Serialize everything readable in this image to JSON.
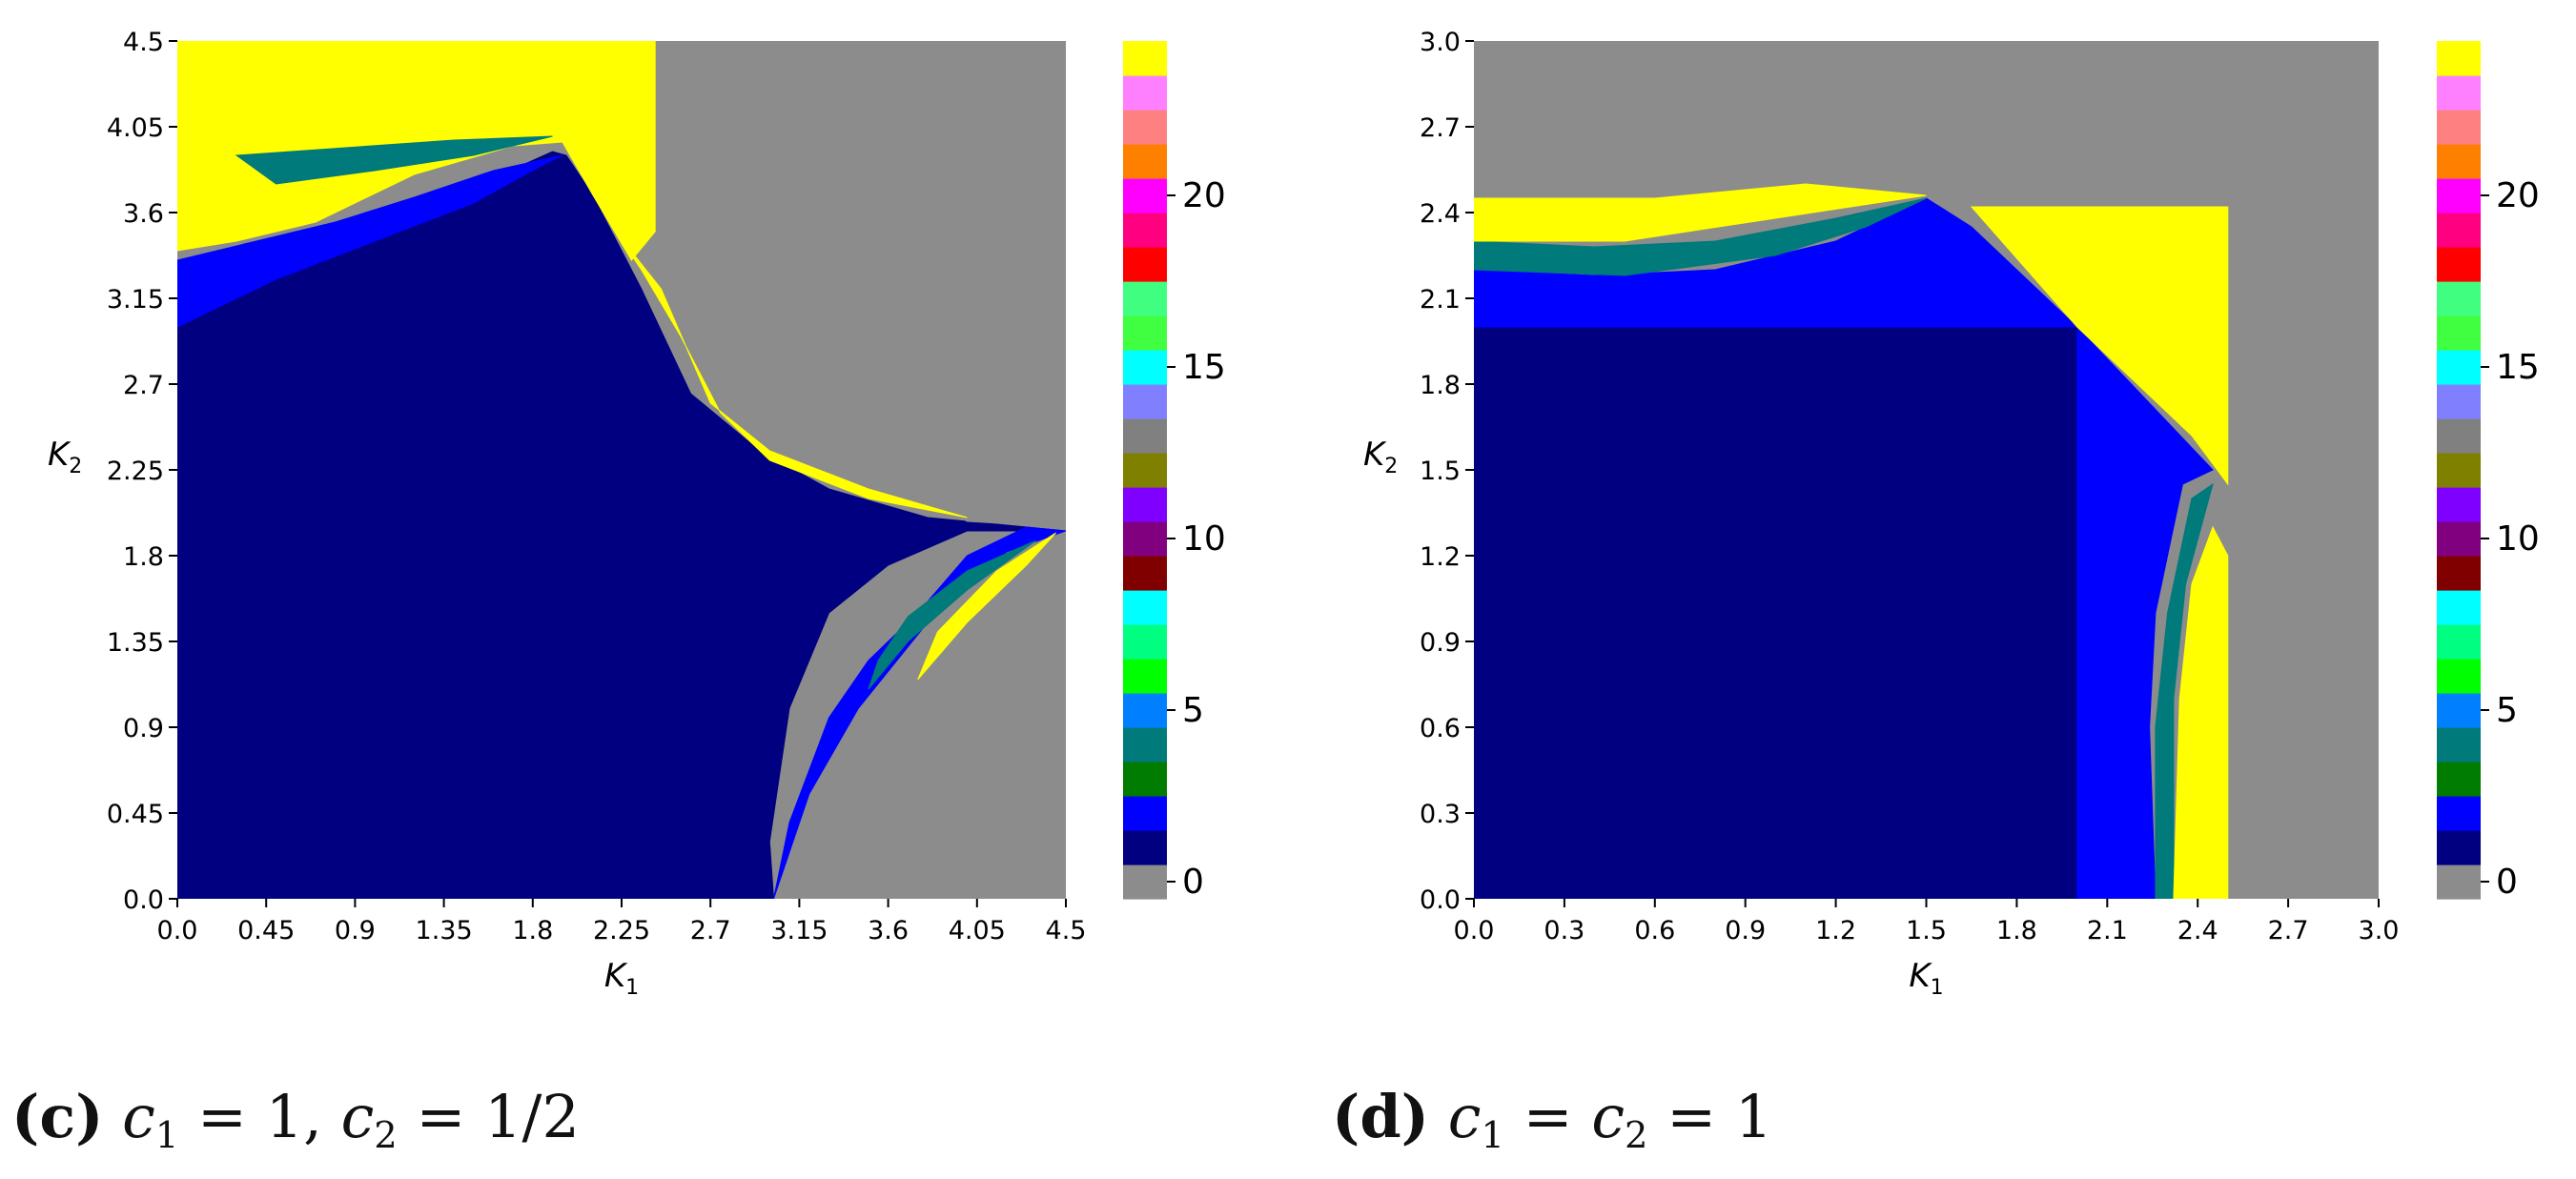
{
  "chart_data": [
    {
      "type": "heatmap",
      "panel": "(c)",
      "xlabel": "K1",
      "ylabel": "K2",
      "x_ticks": [
        0.0,
        0.45,
        0.9,
        1.35,
        1.8,
        2.25,
        2.7,
        3.15,
        3.6,
        4.05,
        4.5
      ],
      "y_ticks": [
        0.0,
        0.45,
        0.9,
        1.35,
        1.8,
        2.25,
        2.7,
        3.15,
        3.6,
        4.05,
        4.5
      ],
      "x_tick_labels": [
        "0.0",
        "0.45",
        "0.9",
        "1.35",
        "1.8",
        "2.25",
        "2.7",
        "3.15",
        "3.6",
        "4.05",
        "4.5"
      ],
      "y_tick_labels": [
        "0.0",
        "0.45",
        "0.9",
        "1.35",
        "1.8",
        "2.25",
        "2.7",
        "3.15",
        "3.6",
        "4.05",
        "4.5"
      ],
      "xlim": [
        0,
        4.5
      ],
      "ylim": [
        0,
        4.5
      ],
      "colorbar_ticks": [
        0,
        5,
        10,
        15,
        20
      ],
      "colorbar_range": [
        0,
        24
      ],
      "regions": [
        {
          "value": 1,
          "polygon": [
            [
              0,
              0
            ],
            [
              3.02,
              0
            ],
            [
              3.0,
              0.3
            ],
            [
              3.1,
              1.0
            ],
            [
              3.3,
              1.5
            ],
            [
              3.6,
              1.75
            ],
            [
              4.0,
              1.93
            ],
            [
              4.5,
              1.93
            ],
            [
              3.8,
              2.0
            ],
            [
              3.3,
              2.15
            ],
            [
              2.95,
              2.35
            ],
            [
              2.6,
              2.65
            ],
            [
              2.35,
              3.2
            ],
            [
              2.1,
              3.7
            ],
            [
              1.97,
              3.9
            ],
            [
              1.9,
              3.92
            ],
            [
              1.6,
              3.78
            ],
            [
              1.2,
              3.6
            ],
            [
              0.8,
              3.42
            ],
            [
              0.5,
              3.3
            ],
            [
              0.2,
              3.15
            ],
            [
              0,
              3.0
            ]
          ]
        },
        {
          "value": 0,
          "polygon": [
            [
              2.42,
              4.5
            ],
            [
              4.5,
              4.5
            ],
            [
              4.5,
              1.95
            ],
            [
              4.0,
              1.98
            ],
            [
              3.6,
              2.2
            ],
            [
              3.0,
              2.5
            ],
            [
              2.6,
              3.3
            ],
            [
              2.42,
              3.5
            ]
          ]
        },
        {
          "value": 0,
          "polygon": [
            [
              3.05,
              0
            ],
            [
              4.5,
              0
            ],
            [
              4.5,
              1.9
            ],
            [
              4.2,
              1.62
            ],
            [
              3.9,
              1.25
            ],
            [
              3.6,
              0.95
            ],
            [
              3.3,
              0.75
            ],
            [
              3.1,
              0.35
            ]
          ]
        },
        {
          "value": 24,
          "polygon": [
            [
              0,
              4.5
            ],
            [
              2.42,
              4.5
            ],
            [
              2.42,
              3.5
            ],
            [
              2.3,
              3.35
            ],
            [
              2.1,
              3.7
            ],
            [
              1.95,
              3.97
            ],
            [
              1.7,
              3.95
            ],
            [
              1.2,
              3.8
            ],
            [
              0.7,
              3.55
            ],
            [
              0.3,
              3.45
            ],
            [
              0,
              3.4
            ]
          ]
        },
        {
          "value": 2,
          "polygon": [
            [
              0,
              3.0
            ],
            [
              0.5,
              3.25
            ],
            [
              1.0,
              3.45
            ],
            [
              1.5,
              3.65
            ],
            [
              1.85,
              3.85
            ],
            [
              1.95,
              3.9
            ],
            [
              1.6,
              3.82
            ],
            [
              1.2,
              3.68
            ],
            [
              0.8,
              3.55
            ],
            [
              0.4,
              3.45
            ],
            [
              0,
              3.35
            ]
          ]
        },
        {
          "value": 2,
          "polygon": [
            [
              3.02,
              0
            ],
            [
              3.2,
              0.55
            ],
            [
              3.45,
              1.0
            ],
            [
              3.8,
              1.45
            ],
            [
              4.2,
              1.82
            ],
            [
              4.5,
              1.93
            ],
            [
              4.3,
              1.95
            ],
            [
              4.0,
              1.8
            ],
            [
              3.75,
              1.5
            ],
            [
              3.5,
              1.25
            ],
            [
              3.3,
              0.95
            ],
            [
              3.1,
              0.4
            ]
          ]
        },
        {
          "value": 4,
          "polygon": [
            [
              3.5,
              1.1
            ],
            [
              3.7,
              1.35
            ],
            [
              4.0,
              1.62
            ],
            [
              4.35,
              1.88
            ],
            [
              4.0,
              1.72
            ],
            [
              3.7,
              1.48
            ],
            [
              3.55,
              1.25
            ]
          ]
        },
        {
          "value": 24,
          "polygon": [
            [
              3.75,
              1.15
            ],
            [
              4.0,
              1.45
            ],
            [
              4.3,
              1.75
            ],
            [
              4.45,
              1.92
            ],
            [
              4.15,
              1.72
            ],
            [
              3.85,
              1.4
            ]
          ]
        },
        {
          "value": 24,
          "polygon": [
            [
              2.22,
              3.5
            ],
            [
              2.45,
              3.2
            ],
            [
              2.7,
              2.6
            ],
            [
              3.0,
              2.35
            ],
            [
              3.5,
              2.15
            ],
            [
              4.0,
              2.0
            ],
            [
              3.5,
              2.1
            ],
            [
              3.0,
              2.3
            ],
            [
              2.75,
              2.55
            ],
            [
              2.55,
              2.95
            ],
            [
              2.35,
              3.3
            ]
          ]
        },
        {
          "value": 4,
          "polygon": [
            [
              0.3,
              3.9
            ],
            [
              1.4,
              3.98
            ],
            [
              1.9,
              4.0
            ],
            [
              1.5,
              3.9
            ],
            [
              1.0,
              3.82
            ],
            [
              0.5,
              3.75
            ]
          ]
        }
      ]
    },
    {
      "type": "heatmap",
      "panel": "(d)",
      "xlabel": "K1",
      "ylabel": "K2",
      "x_ticks": [
        0.0,
        0.3,
        0.6,
        0.9,
        1.2,
        1.5,
        1.8,
        2.1,
        2.4,
        2.7,
        3.0
      ],
      "y_ticks": [
        0.0,
        0.3,
        0.6,
        0.9,
        1.2,
        1.5,
        1.8,
        2.1,
        2.4,
        2.7,
        3.0
      ],
      "x_tick_labels": [
        "0.0",
        "0.3",
        "0.6",
        "0.9",
        "1.2",
        "1.5",
        "1.8",
        "2.1",
        "2.4",
        "2.7",
        "3.0"
      ],
      "y_tick_labels": [
        "0.0",
        "0.3",
        "0.6",
        "0.9",
        "1.2",
        "1.5",
        "1.8",
        "2.1",
        "2.4",
        "2.7",
        "3.0"
      ],
      "xlim": [
        0,
        3.0
      ],
      "ylim": [
        0,
        3.0
      ],
      "colorbar_ticks": [
        0,
        5,
        10,
        15,
        20
      ],
      "colorbar_range": [
        0,
        24
      ],
      "regions": [
        {
          "value": 1,
          "polygon": [
            [
              0,
              0
            ],
            [
              2.0,
              0
            ],
            [
              2.0,
              2.0
            ],
            [
              0,
              2.0
            ]
          ]
        },
        {
          "value": 2,
          "polygon": [
            [
              0,
              2.0
            ],
            [
              2.0,
              2.0
            ],
            [
              2.0,
              0
            ],
            [
              2.26,
              0
            ],
            [
              2.24,
              0.6
            ],
            [
              2.26,
              1.0
            ],
            [
              2.35,
              1.45
            ],
            [
              2.45,
              1.5
            ],
            [
              2.0,
              2.0
            ],
            [
              1.65,
              2.35
            ],
            [
              1.5,
              2.45
            ],
            [
              1.2,
              2.3
            ],
            [
              0.8,
              2.2
            ],
            [
              0.4,
              2.18
            ],
            [
              0,
              2.2
            ]
          ]
        },
        {
          "value": 4,
          "polygon": [
            [
              0,
              2.2
            ],
            [
              0.5,
              2.18
            ],
            [
              1.0,
              2.25
            ],
            [
              1.3,
              2.35
            ],
            [
              1.5,
              2.45
            ],
            [
              1.2,
              2.38
            ],
            [
              0.8,
              2.3
            ],
            [
              0.4,
              2.28
            ],
            [
              0,
              2.3
            ]
          ]
        },
        {
          "value": 24,
          "polygon": [
            [
              0,
              2.3
            ],
            [
              0.5,
              2.3
            ],
            [
              1.0,
              2.38
            ],
            [
              1.5,
              2.46
            ],
            [
              1.1,
              2.5
            ],
            [
              0.6,
              2.45
            ],
            [
              0,
              2.45
            ]
          ]
        },
        {
          "value": 24,
          "polygon": [
            [
              1.65,
              2.42
            ],
            [
              2.5,
              2.42
            ],
            [
              2.5,
              1.45
            ],
            [
              2.38,
              1.62
            ],
            [
              2.0,
              2.0
            ]
          ]
        },
        {
          "value": 4,
          "polygon": [
            [
              2.26,
              0
            ],
            [
              2.32,
              0
            ],
            [
              2.32,
              0.7
            ],
            [
              2.36,
              1.1
            ],
            [
              2.45,
              1.45
            ],
            [
              2.38,
              1.4
            ],
            [
              2.3,
              1.0
            ],
            [
              2.26,
              0.6
            ]
          ]
        },
        {
          "value": 24,
          "polygon": [
            [
              2.32,
              0
            ],
            [
              2.5,
              0
            ],
            [
              2.5,
              1.2
            ],
            [
              2.45,
              1.3
            ],
            [
              2.38,
              1.1
            ],
            [
              2.34,
              0.7
            ]
          ]
        }
      ]
    }
  ],
  "colorbar": {
    "colors": [
      "#8c8c8c",
      "#000080",
      "#0000ff",
      "#007c00",
      "#007a7a",
      "#0080ff",
      "#00ff00",
      "#00ff80",
      "#00ffff",
      "#800000",
      "#800080",
      "#8000ff",
      "#808000",
      "#808080",
      "#8080ff",
      "#00ffff",
      "#40ff40",
      "#40ff80",
      "#ff0000",
      "#ff0080",
      "#ff00ff",
      "#ff8000",
      "#ff8080",
      "#ff80ff",
      "#ffff00"
    ],
    "tick_labels": [
      "0",
      "5",
      "10",
      "15",
      "20"
    ]
  },
  "captions": {
    "c": {
      "label": "(c)",
      "math": "c1 = 1, c2 = 1/2"
    },
    "d": {
      "label": "(d)",
      "math": "c1 = c2 = 1"
    }
  }
}
